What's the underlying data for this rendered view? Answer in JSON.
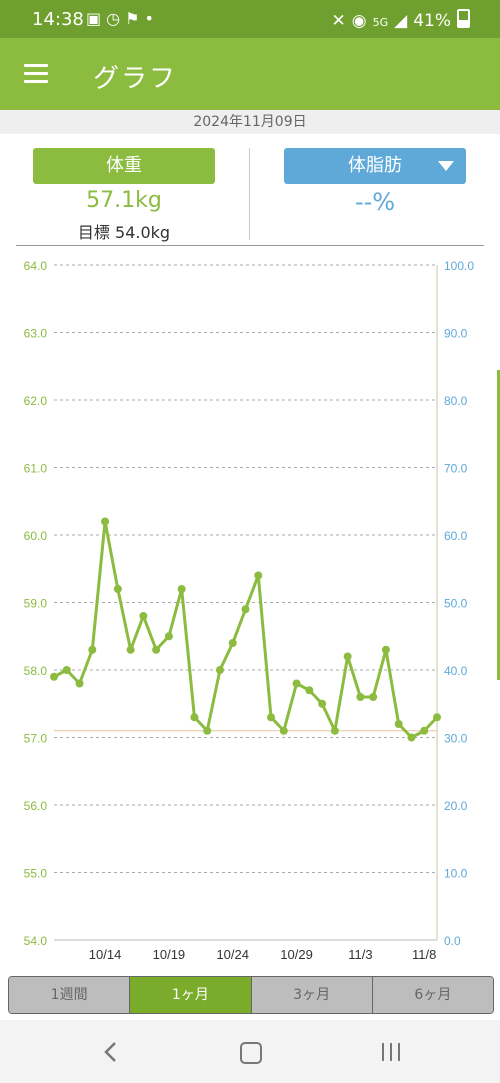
{
  "status_bar": {
    "time": "14:38",
    "left_icons": [
      "gallery-icon",
      "alarm-check-icon",
      "running-icon",
      "dot-icon"
    ],
    "network": "5G",
    "battery": "41%"
  },
  "app_bar": {
    "title": "グラフ"
  },
  "date": "2024年11月09日",
  "weight": {
    "label": "体重",
    "value": "57.1kg",
    "target": "目標 54.0kg"
  },
  "body_fat": {
    "label": "体脂肪",
    "value": "--%"
  },
  "colors": {
    "app_bar": "#8bbb3f",
    "status_bar": "#6f9f2f",
    "weight": "#8bbb3f",
    "fat": "#5fa9d8",
    "tab_active": "#7aab2b"
  },
  "chart_data": {
    "type": "line",
    "title": "",
    "xlabel": "",
    "ylabel": "",
    "x_ticks": [
      "10/14",
      "10/19",
      "10/24",
      "10/29",
      "11/3",
      "11/8"
    ],
    "y_left_ticks": [
      "54.0",
      "55.0",
      "56.0",
      "57.0",
      "58.0",
      "59.0",
      "60.0",
      "61.0",
      "62.0",
      "63.0",
      "64.0"
    ],
    "y_right_ticks": [
      "0.0",
      "10.0",
      "20.0",
      "30.0",
      "40.0",
      "50.0",
      "60.0",
      "70.0",
      "80.0",
      "90.0",
      "100.0"
    ],
    "y_left_range": [
      54.0,
      64.0
    ],
    "y_right_range": [
      0.0,
      100.0
    ],
    "x_range": [
      "10/10",
      "11/9"
    ],
    "grid": true,
    "reference_line": 57.1,
    "series": [
      {
        "axis": "left",
        "x": [
          "10/10",
          "10/11",
          "10/12",
          "10/13",
          "10/14",
          "10/15",
          "10/16",
          "10/17",
          "10/18",
          "10/19",
          "10/20",
          "10/21",
          "10/22",
          "10/23",
          "10/24",
          "10/25",
          "10/26",
          "10/27",
          "10/28",
          "10/29",
          "10/30",
          "10/31",
          "11/1",
          "11/2",
          "11/3",
          "11/4",
          "11/5",
          "11/6",
          "11/7",
          "11/8",
          "11/9"
        ],
        "values": [
          57.9,
          58.0,
          57.8,
          58.3,
          60.2,
          59.2,
          58.3,
          58.8,
          58.3,
          58.5,
          59.2,
          57.3,
          57.1,
          58.0,
          58.4,
          58.9,
          59.4,
          57.3,
          57.1,
          57.8,
          57.7,
          57.5,
          57.1,
          58.2,
          57.6,
          57.6,
          58.3,
          57.2,
          57.0,
          57.1,
          57.3
        ]
      }
    ]
  },
  "period_tabs": [
    "1週間",
    "1ヶ月",
    "3ヶ月",
    "6ヶ月"
  ],
  "active_tab": "1ヶ月",
  "nav_bar": [
    "back-icon",
    "home-icon",
    "recent-apps-icon"
  ]
}
